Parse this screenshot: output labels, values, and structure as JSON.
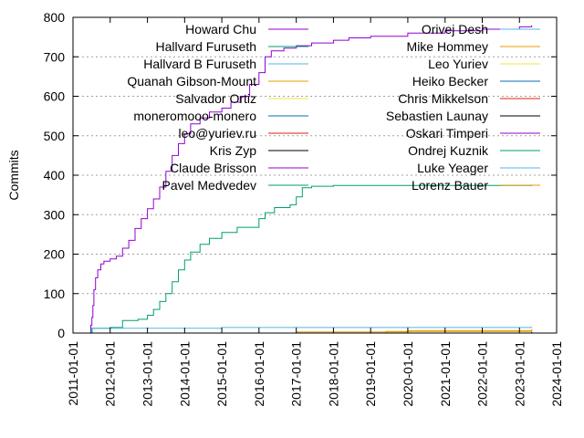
{
  "chart_data": {
    "type": "line",
    "title": "",
    "xlabel": "",
    "ylabel": "Commits",
    "ylim": [
      0,
      800
    ],
    "xlim": [
      "2011-01-01",
      "2024-01-01"
    ],
    "y_ticks": [
      "0",
      "100",
      "200",
      "300",
      "400",
      "500",
      "600",
      "700",
      "800"
    ],
    "x_ticks": [
      "2011-01-01",
      "2012-01-01",
      "2013-01-01",
      "2014-01-01",
      "2015-01-01",
      "2016-01-01",
      "2017-01-01",
      "2018-01-01",
      "2019-01-01",
      "2020-01-01",
      "2021-01-01",
      "2022-01-01",
      "2023-01-01",
      "2024-01-01"
    ],
    "grid": "horizontal dotted",
    "legend_position": "inside, two columns",
    "series": [
      {
        "name": "Howard Chu",
        "color": "#9400d3",
        "points": [
          [
            "2011-06-20",
            0
          ],
          [
            "2011-06-25",
            20
          ],
          [
            "2011-07-05",
            40
          ],
          [
            "2011-07-15",
            70
          ],
          [
            "2011-07-25",
            110
          ],
          [
            "2011-08-10",
            140
          ],
          [
            "2011-09-01",
            160
          ],
          [
            "2011-10-01",
            175
          ],
          [
            "2011-11-01",
            182
          ],
          [
            "2012-01-01",
            188
          ],
          [
            "2012-03-01",
            195
          ],
          [
            "2012-05-01",
            215
          ],
          [
            "2012-07-01",
            235
          ],
          [
            "2012-09-01",
            265
          ],
          [
            "2012-11-01",
            290
          ],
          [
            "2013-01-01",
            315
          ],
          [
            "2013-03-01",
            340
          ],
          [
            "2013-05-01",
            370
          ],
          [
            "2013-07-01",
            410
          ],
          [
            "2013-09-01",
            450
          ],
          [
            "2013-11-01",
            480
          ],
          [
            "2014-01-01",
            505
          ],
          [
            "2014-03-01",
            530
          ],
          [
            "2014-06-01",
            545
          ],
          [
            "2014-09-01",
            560
          ],
          [
            "2015-01-01",
            570
          ],
          [
            "2015-04-01",
            585
          ],
          [
            "2015-07-01",
            600
          ],
          [
            "2015-10-01",
            630
          ],
          [
            "2016-01-01",
            660
          ],
          [
            "2016-03-01",
            700
          ],
          [
            "2016-05-01",
            715
          ],
          [
            "2016-09-01",
            722
          ],
          [
            "2017-01-01",
            728
          ],
          [
            "2017-06-01",
            735
          ],
          [
            "2018-01-01",
            742
          ],
          [
            "2018-06-01",
            748
          ],
          [
            "2019-01-01",
            752
          ],
          [
            "2020-01-01",
            760
          ],
          [
            "2021-01-01",
            766
          ],
          [
            "2022-01-01",
            770
          ],
          [
            "2023-01-01",
            776
          ],
          [
            "2023-05-01",
            780
          ]
        ]
      },
      {
        "name": "Hallvard Furuseth",
        "color": "#009e73",
        "points": [
          [
            "2011-06-20",
            0
          ],
          [
            "2011-07-01",
            12
          ],
          [
            "2012-01-01",
            14
          ],
          [
            "2012-05-01",
            32
          ],
          [
            "2012-10-01",
            35
          ],
          [
            "2013-01-01",
            45
          ],
          [
            "2013-03-01",
            60
          ],
          [
            "2013-05-01",
            80
          ],
          [
            "2013-07-01",
            100
          ],
          [
            "2013-09-01",
            130
          ],
          [
            "2013-11-01",
            160
          ],
          [
            "2014-01-01",
            185
          ],
          [
            "2014-03-01",
            205
          ],
          [
            "2014-06-01",
            225
          ],
          [
            "2014-09-01",
            240
          ],
          [
            "2015-01-01",
            255
          ],
          [
            "2015-06-01",
            268
          ],
          [
            "2016-01-01",
            290
          ],
          [
            "2016-03-01",
            305
          ],
          [
            "2016-06-01",
            318
          ],
          [
            "2016-11-01",
            325
          ],
          [
            "2017-01-01",
            345
          ],
          [
            "2017-03-01",
            368
          ],
          [
            "2017-06-01",
            372
          ],
          [
            "2018-01-01",
            374
          ],
          [
            "2023-05-01",
            376
          ]
        ]
      },
      {
        "name": "Hallvard B Furuseth",
        "color": "#56b4e9",
        "points": [
          [
            "2011-07-01",
            0
          ],
          [
            "2011-07-10",
            12
          ],
          [
            "2015-01-01",
            14
          ],
          [
            "2023-05-01",
            16
          ]
        ]
      },
      {
        "name": "Quanah Gibson-Mount",
        "color": "#e69f00",
        "points": [
          [
            "2012-06-01",
            0
          ],
          [
            "2017-01-01",
            3
          ],
          [
            "2020-01-01",
            6
          ],
          [
            "2023-05-01",
            10
          ]
        ]
      },
      {
        "name": "Salvador Ortiz",
        "color": "#f0e442",
        "points": [
          [
            "2013-01-01",
            0
          ],
          [
            "2023-05-01",
            4
          ]
        ]
      },
      {
        "name": "moneromooo-monero",
        "color": "#0072b2",
        "points": [
          [
            "2014-06-01",
            0
          ],
          [
            "2023-05-01",
            3
          ]
        ]
      },
      {
        "name": "leo@yuriev.ru",
        "color": "#e51e10",
        "points": [
          [
            "2012-06-01",
            0
          ],
          [
            "2023-05-01",
            2
          ]
        ]
      },
      {
        "name": "Kris Zyp",
        "color": "#000000",
        "points": [
          [
            "2018-01-01",
            0
          ],
          [
            "2023-05-01",
            2
          ]
        ]
      },
      {
        "name": "Claude Brisson",
        "color": "#9400d3",
        "points": [
          [
            "2015-01-01",
            0
          ],
          [
            "2023-05-01",
            1
          ]
        ]
      },
      {
        "name": "Pavel Medvedev",
        "color": "#009e73",
        "points": [
          [
            "2016-01-01",
            0
          ],
          [
            "2023-05-01",
            1
          ]
        ]
      },
      {
        "name": "Orivej Desh",
        "color": "#56b4e9",
        "points": [
          [
            "2017-01-01",
            0
          ],
          [
            "2023-05-01",
            1
          ]
        ]
      },
      {
        "name": "Mike Hommey",
        "color": "#e69f00",
        "points": [
          [
            "2019-01-01",
            0
          ],
          [
            "2019-06-01",
            4
          ],
          [
            "2023-05-01",
            8
          ]
        ]
      },
      {
        "name": "Leo Yuriev",
        "color": "#f0e442",
        "points": [
          [
            "2019-01-01",
            0
          ],
          [
            "2023-05-01",
            1
          ]
        ]
      },
      {
        "name": "Heiko Becker",
        "color": "#0072b2",
        "points": [
          [
            "2020-01-01",
            0
          ],
          [
            "2023-05-01",
            1
          ]
        ]
      },
      {
        "name": "Chris Mikkelson",
        "color": "#e51e10",
        "points": [
          [
            "2020-06-01",
            0
          ],
          [
            "2023-05-01",
            1
          ]
        ]
      },
      {
        "name": "Sebastien Launay",
        "color": "#000000",
        "points": [
          [
            "2021-01-01",
            0
          ],
          [
            "2023-05-01",
            1
          ]
        ]
      },
      {
        "name": "Oskari Timperi",
        "color": "#9400d3",
        "points": [
          [
            "2021-06-01",
            0
          ],
          [
            "2023-05-01",
            1
          ]
        ]
      },
      {
        "name": "Ondrej Kuznik",
        "color": "#009e73",
        "points": [
          [
            "2022-01-01",
            0
          ],
          [
            "2023-05-01",
            1
          ]
        ]
      },
      {
        "name": "Luke Yeager",
        "color": "#56b4e9",
        "points": [
          [
            "2022-06-01",
            0
          ],
          [
            "2023-05-01",
            1
          ]
        ]
      },
      {
        "name": "Lorenz Bauer",
        "color": "#e69f00",
        "points": [
          [
            "2022-09-01",
            0
          ],
          [
            "2023-05-01",
            1
          ]
        ]
      }
    ]
  }
}
